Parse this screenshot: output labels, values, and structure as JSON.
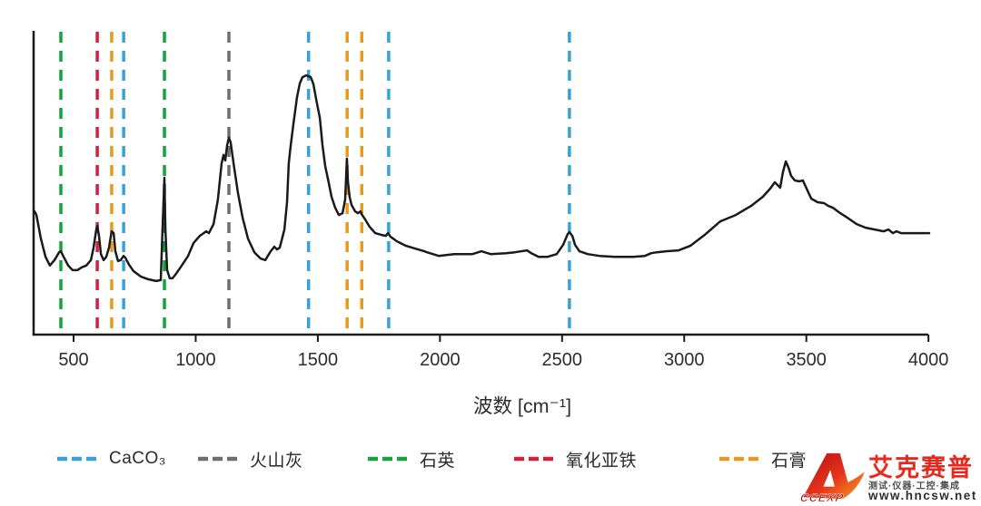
{
  "chart_data": {
    "type": "line",
    "title": "",
    "xlabel": "波数 [cm⁻¹]",
    "ylabel": "",
    "x_ticks": [
      500,
      1000,
      1500,
      2000,
      2500,
      3000,
      3500,
      4000
    ],
    "x_range": [
      340,
      4003
    ],
    "grid": false,
    "legend_position": "bottom",
    "axis_color": "#1a1a1a",
    "spectrum": {
      "color": "#1a1a1a",
      "intensity_units": "normalized absorbance (a.u., 0-1, read from pixels)",
      "points": [
        [
          340,
          0.407
        ],
        [
          348,
          0.395
        ],
        [
          366,
          0.317
        ],
        [
          385,
          0.257
        ],
        [
          403,
          0.228
        ],
        [
          422,
          0.246
        ],
        [
          441,
          0.272
        ],
        [
          448,
          0.275
        ],
        [
          459,
          0.257
        ],
        [
          478,
          0.228
        ],
        [
          496,
          0.213
        ],
        [
          515,
          0.213
        ],
        [
          533,
          0.222
        ],
        [
          552,
          0.228
        ],
        [
          571,
          0.246
        ],
        [
          582,
          0.287
        ],
        [
          593,
          0.347
        ],
        [
          597,
          0.359
        ],
        [
          604,
          0.326
        ],
        [
          612,
          0.266
        ],
        [
          623,
          0.246
        ],
        [
          634,
          0.257
        ],
        [
          645,
          0.287
        ],
        [
          656,
          0.341
        ],
        [
          664,
          0.335
        ],
        [
          671,
          0.275
        ],
        [
          682,
          0.243
        ],
        [
          693,
          0.246
        ],
        [
          705,
          0.26
        ],
        [
          712,
          0.254
        ],
        [
          727,
          0.231
        ],
        [
          745,
          0.21
        ],
        [
          775,
          0.192
        ],
        [
          805,
          0.183
        ],
        [
          838,
          0.177
        ],
        [
          857,
          0.18
        ],
        [
          864,
          0.347
        ],
        [
          872,
          0.518
        ],
        [
          876,
          0.347
        ],
        [
          883,
          0.213
        ],
        [
          894,
          0.186
        ],
        [
          905,
          0.186
        ],
        [
          917,
          0.198
        ],
        [
          943,
          0.228
        ],
        [
          969,
          0.26
        ],
        [
          991,
          0.302
        ],
        [
          1017,
          0.326
        ],
        [
          1043,
          0.341
        ],
        [
          1054,
          0.335
        ],
        [
          1073,
          0.365
        ],
        [
          1091,
          0.446
        ],
        [
          1106,
          0.566
        ],
        [
          1114,
          0.593
        ],
        [
          1121,
          0.575
        ],
        [
          1129,
          0.626
        ],
        [
          1136,
          0.65
        ],
        [
          1143,
          0.635
        ],
        [
          1155,
          0.566
        ],
        [
          1173,
          0.467
        ],
        [
          1192,
          0.386
        ],
        [
          1214,
          0.317
        ],
        [
          1240,
          0.272
        ],
        [
          1266,
          0.251
        ],
        [
          1285,
          0.246
        ],
        [
          1307,
          0.275
        ],
        [
          1322,
          0.29
        ],
        [
          1333,
          0.281
        ],
        [
          1344,
          0.287
        ],
        [
          1363,
          0.347
        ],
        [
          1374,
          0.437
        ],
        [
          1381,
          0.566
        ],
        [
          1389,
          0.626
        ],
        [
          1400,
          0.695
        ],
        [
          1415,
          0.784
        ],
        [
          1426,
          0.829
        ],
        [
          1437,
          0.85
        ],
        [
          1452,
          0.856
        ],
        [
          1471,
          0.85
        ],
        [
          1482,
          0.826
        ],
        [
          1493,
          0.778
        ],
        [
          1508,
          0.716
        ],
        [
          1519,
          0.626
        ],
        [
          1530,
          0.557
        ],
        [
          1545,
          0.5
        ],
        [
          1556,
          0.455
        ],
        [
          1571,
          0.419
        ],
        [
          1586,
          0.395
        ],
        [
          1601,
          0.401
        ],
        [
          1612,
          0.446
        ],
        [
          1619,
          0.581
        ],
        [
          1623,
          0.506
        ],
        [
          1630,
          0.455
        ],
        [
          1638,
          0.428
        ],
        [
          1653,
          0.407
        ],
        [
          1664,
          0.401
        ],
        [
          1675,
          0.407
        ],
        [
          1679,
          0.398
        ],
        [
          1694,
          0.38
        ],
        [
          1712,
          0.356
        ],
        [
          1735,
          0.335
        ],
        [
          1761,
          0.329
        ],
        [
          1779,
          0.326
        ],
        [
          1787,
          0.335
        ],
        [
          1798,
          0.323
        ],
        [
          1824,
          0.308
        ],
        [
          1861,
          0.293
        ],
        [
          1898,
          0.284
        ],
        [
          1936,
          0.275
        ],
        [
          1947,
          0.272
        ],
        [
          1995,
          0.26
        ],
        [
          2058,
          0.266
        ],
        [
          2133,
          0.266
        ],
        [
          2170,
          0.275
        ],
        [
          2207,
          0.266
        ],
        [
          2270,
          0.269
        ],
        [
          2307,
          0.272
        ],
        [
          2356,
          0.278
        ],
        [
          2374,
          0.269
        ],
        [
          2404,
          0.257
        ],
        [
          2441,
          0.257
        ],
        [
          2478,
          0.266
        ],
        [
          2504,
          0.296
        ],
        [
          2523,
          0.332
        ],
        [
          2530,
          0.338
        ],
        [
          2542,
          0.326
        ],
        [
          2553,
          0.296
        ],
        [
          2571,
          0.275
        ],
        [
          2605,
          0.266
        ],
        [
          2653,
          0.26
        ],
        [
          2716,
          0.257
        ],
        [
          2791,
          0.257
        ],
        [
          2839,
          0.26
        ],
        [
          2865,
          0.269
        ],
        [
          2888,
          0.272
        ],
        [
          2925,
          0.275
        ],
        [
          2977,
          0.278
        ],
        [
          3025,
          0.293
        ],
        [
          3088,
          0.332
        ],
        [
          3148,
          0.374
        ],
        [
          3211,
          0.395
        ],
        [
          3274,
          0.425
        ],
        [
          3322,
          0.455
        ],
        [
          3352,
          0.482
        ],
        [
          3371,
          0.503
        ],
        [
          3386,
          0.491
        ],
        [
          3393,
          0.485
        ],
        [
          3404,
          0.536
        ],
        [
          3416,
          0.572
        ],
        [
          3427,
          0.551
        ],
        [
          3438,
          0.524
        ],
        [
          3453,
          0.509
        ],
        [
          3471,
          0.506
        ],
        [
          3486,
          0.509
        ],
        [
          3501,
          0.482
        ],
        [
          3520,
          0.449
        ],
        [
          3546,
          0.437
        ],
        [
          3572,
          0.434
        ],
        [
          3590,
          0.425
        ],
        [
          3609,
          0.419
        ],
        [
          3639,
          0.401
        ],
        [
          3668,
          0.386
        ],
        [
          3706,
          0.365
        ],
        [
          3743,
          0.353
        ],
        [
          3780,
          0.347
        ],
        [
          3817,
          0.341
        ],
        [
          3836,
          0.347
        ],
        [
          3854,
          0.335
        ],
        [
          3869,
          0.341
        ],
        [
          3888,
          0.335
        ],
        [
          3918,
          0.335
        ],
        [
          3966,
          0.335
        ],
        [
          4003,
          0.335
        ]
      ]
    },
    "markers": [
      {
        "label": "CaCO₃",
        "color": "#36a2d9",
        "wavenumbers": [
          705,
          1462,
          1790,
          2530
        ]
      },
      {
        "label": "火山灰",
        "color": "#6e6e6e",
        "wavenumbers": [
          1136
        ]
      },
      {
        "label": "石英",
        "color": "#14a43c",
        "wavenumbers": [
          448,
          872
        ]
      },
      {
        "label": "氧化亚铁",
        "color": "#d2203e",
        "wavenumbers": [
          597
        ]
      },
      {
        "label": "石膏",
        "color": "#e8991f",
        "wavenumbers": [
          656,
          1620,
          1680
        ]
      }
    ]
  },
  "watermark": {
    "logo_text": "CCEXP",
    "brand": "艾克赛普",
    "slogan": "测试·仪器·工控·集成",
    "url": "www.hncsw.net",
    "brand_color": "#e8281c"
  }
}
